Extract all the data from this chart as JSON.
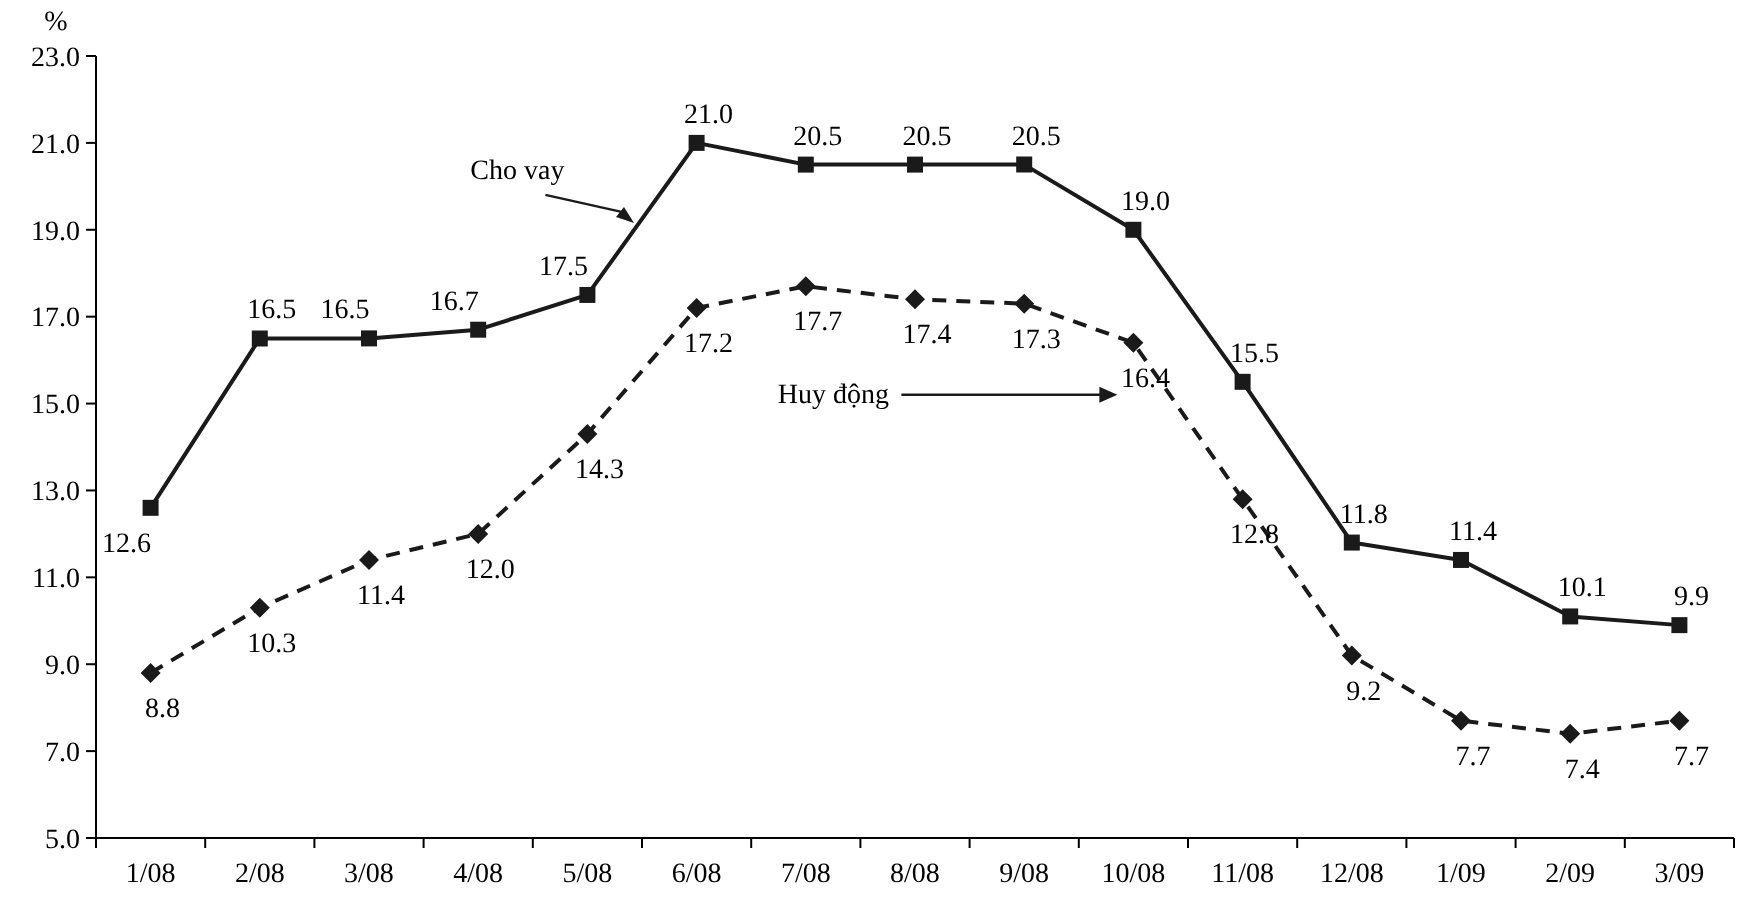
{
  "chart_data": {
    "type": "line",
    "ylabel": "%",
    "categories": [
      "1/08",
      "2/08",
      "3/08",
      "4/08",
      "5/08",
      "6/08",
      "7/08",
      "8/08",
      "9/08",
      "10/08",
      "11/08",
      "12/08",
      "1/09",
      "2/09",
      "3/09"
    ],
    "series": [
      {
        "name": "Cho vay",
        "color": "#1a1a1a",
        "marker": "square",
        "line_style": "solid",
        "values": [
          12.6,
          16.5,
          16.5,
          16.7,
          17.5,
          21.0,
          20.5,
          20.5,
          20.5,
          19.0,
          15.5,
          11.8,
          11.4,
          10.1,
          9.9
        ],
        "value_labels": [
          "12.6",
          "16.5",
          "16.5",
          "16.7",
          "17.5",
          "21.0",
          "20.5",
          "20.5",
          "20.5",
          "19.0",
          "15.5",
          "11.8",
          "11.4",
          "10.1",
          "9.9"
        ]
      },
      {
        "name": "Huy động",
        "color": "#1a1a1a",
        "marker": "diamond",
        "line_style": "dashed",
        "values": [
          8.8,
          10.3,
          11.4,
          12.0,
          14.3,
          17.2,
          17.7,
          17.4,
          17.3,
          16.4,
          12.8,
          9.2,
          7.7,
          7.4,
          7.7
        ],
        "value_labels": [
          "8.8",
          "10.3",
          "11.4",
          "12.0",
          "14.3",
          "17.2",
          "17.7",
          "17.4",
          "17.3",
          "16.4",
          "12.8",
          "9.2",
          "7.7",
          "7.4",
          "7.7"
        ]
      }
    ],
    "ylim": [
      5,
      23
    ],
    "yticks": [
      {
        "value": 5,
        "label": "5.0"
      },
      {
        "value": 7,
        "label": "7.0"
      },
      {
        "value": 9,
        "label": "9.0"
      },
      {
        "value": 11,
        "label": "11.0"
      },
      {
        "value": 13,
        "label": "13.0"
      },
      {
        "value": 15,
        "label": "15.0"
      },
      {
        "value": 17,
        "label": "17.0"
      },
      {
        "value": 19,
        "label": "19.0"
      },
      {
        "value": 21,
        "label": "21.0"
      },
      {
        "value": 23,
        "label": "23.0"
      }
    ],
    "grid": false
  }
}
